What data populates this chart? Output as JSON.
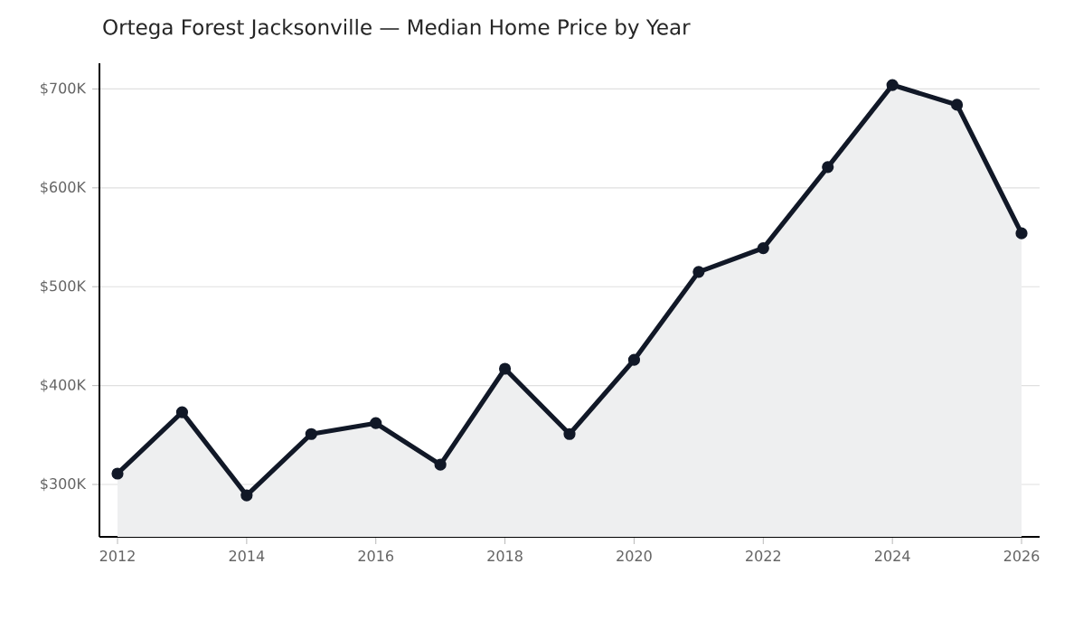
{
  "chart_data": {
    "type": "area",
    "title": "Ortega Forest Jacksonville — Median Home Price by Year",
    "x": [
      2012,
      2013,
      2014,
      2015,
      2016,
      2017,
      2018,
      2019,
      2020,
      2021,
      2022,
      2023,
      2024,
      2025,
      2026
    ],
    "series": [
      {
        "color": "#111827",
        "values": [
          311,
          373,
          289,
          351,
          362,
          320,
          417,
          351,
          426,
          515,
          539,
          621,
          704,
          684,
          554
        ]
      }
    ],
    "xlim": [
      2011.72,
      2026.28
    ],
    "xticks": [
      2012,
      2014,
      2016,
      2018,
      2020,
      2022,
      2024,
      2026
    ],
    "ylim": [
      247,
      726
    ],
    "yticks": [
      {
        "value": 300,
        "label": "$300K"
      },
      {
        "value": 400,
        "label": "$400K"
      },
      {
        "value": 500,
        "label": "$500K"
      },
      {
        "value": 600,
        "label": "$600K"
      },
      {
        "value": 700,
        "label": "$700K"
      }
    ],
    "grid": "y",
    "marker": "circle",
    "line_style": "solid"
  }
}
